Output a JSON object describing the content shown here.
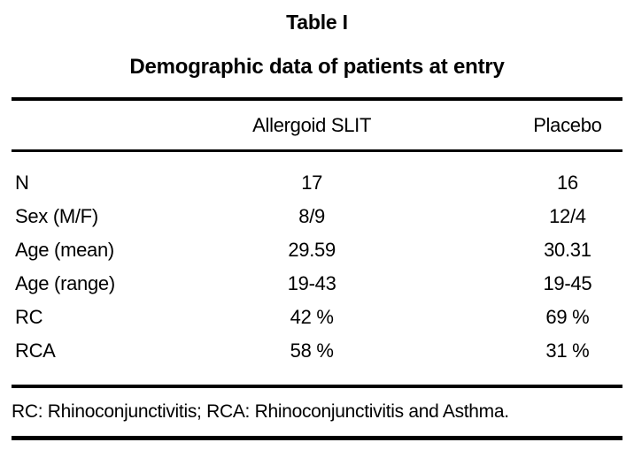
{
  "table": {
    "label": "Table I",
    "title": "Demographic data of patients at entry",
    "columns": [
      "",
      "Allergoid SLIT",
      "Placebo"
    ],
    "rows": [
      {
        "label": "N",
        "slit": "17",
        "placebo": "16"
      },
      {
        "label": "Sex (M/F)",
        "slit": "8/9",
        "placebo": "12/4"
      },
      {
        "label": "Age (mean)",
        "slit": "29.59",
        "placebo": "30.31"
      },
      {
        "label": "Age (range)",
        "slit": "19-43",
        "placebo": "19-45"
      },
      {
        "label": "RC",
        "slit": "42 %",
        "placebo": "69 %"
      },
      {
        "label": "RCA",
        "slit": "58 %",
        "placebo": "31 %"
      }
    ],
    "footnote": "RC: Rhinoconjunctivitis; RCA: Rhinoconjunctivitis and Asthma."
  },
  "colors": {
    "text": "#000000",
    "background": "#ffffff",
    "rule": "#000000"
  }
}
